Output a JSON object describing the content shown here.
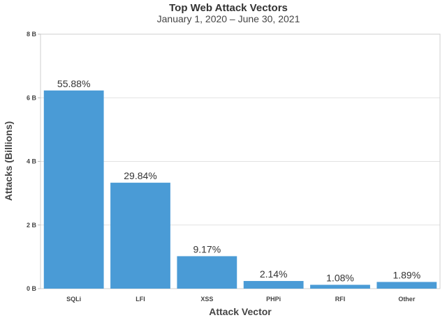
{
  "chart_data": {
    "type": "bar",
    "title": "Top Web Attack Vectors",
    "subtitle": "January 1, 2020 – June 30, 2021",
    "xlabel": "Attack Vector",
    "ylabel": "Attacks (Billions)",
    "categories": [
      "SQLi",
      "LFI",
      "XSS",
      "PHPi",
      "RFI",
      "Other"
    ],
    "values": [
      6.23,
      3.33,
      1.02,
      0.24,
      0.12,
      0.21
    ],
    "data_labels": [
      "55.88%",
      "29.84%",
      "9.17%",
      "2.14%",
      "1.08%",
      "1.89%"
    ],
    "ylim": [
      0,
      8
    ],
    "y_ticks": [
      {
        "value": 0,
        "label": "0 B"
      },
      {
        "value": 2,
        "label": "2 B"
      },
      {
        "value": 4,
        "label": "4 B"
      },
      {
        "value": 6,
        "label": "6 B"
      },
      {
        "value": 8,
        "label": "8 B"
      }
    ],
    "grid": true,
    "bar_color": "#4a9bd6",
    "gridline_color": "#e2e2e2"
  }
}
